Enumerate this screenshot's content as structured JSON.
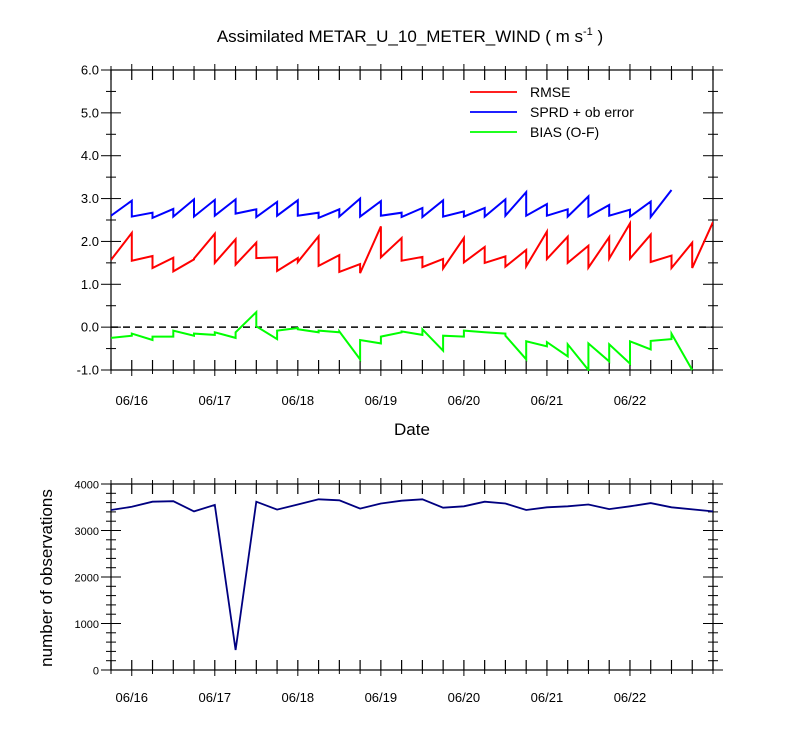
{
  "title": "Assimilated METAR_U_10_METER_WIND ( m s",
  "title_sup": "-1",
  "title_close": " )",
  "chart_data": [
    {
      "type": "line",
      "xlabel": "Date",
      "ylabel": "",
      "x_tick_labels": [
        "06/16",
        "06/17",
        "06/18",
        "06/19",
        "06/20",
        "06/21",
        "06/22"
      ],
      "x_tick_positions": [
        15.25,
        16.25,
        17.25,
        18.25,
        19.25,
        20.25,
        21.25
      ],
      "xlim": [
        15.0,
        22.25
      ],
      "ylim": [
        -1.0,
        6.0
      ],
      "y_ticks": [
        -1.0,
        0.0,
        1.0,
        2.0,
        3.0,
        4.0,
        5.0,
        6.0
      ],
      "y_tick_labels": [
        "-1.0",
        "0.0",
        "1.0",
        "2.0",
        "3.0",
        "4.0",
        "5.0",
        "6.0"
      ],
      "reference_line": {
        "y": 0.0,
        "style": "dashed"
      },
      "legend_position": "top-right",
      "series": [
        {
          "name": "RMSE",
          "color": "#ff0000",
          "points": [
            [
              15.0,
              1.57
            ],
            [
              15.25,
              2.2
            ],
            [
              15.25,
              1.55
            ],
            [
              15.5,
              1.66
            ],
            [
              15.5,
              1.38
            ],
            [
              15.75,
              1.62
            ],
            [
              15.75,
              1.3
            ],
            [
              16.0,
              1.58
            ],
            [
              16.0,
              1.6
            ],
            [
              16.25,
              2.18
            ],
            [
              16.25,
              1.5
            ],
            [
              16.5,
              2.05
            ],
            [
              16.5,
              1.46
            ],
            [
              16.75,
              1.97
            ],
            [
              16.75,
              1.61
            ],
            [
              17.0,
              1.63
            ],
            [
              17.0,
              1.31
            ],
            [
              17.25,
              1.61
            ],
            [
              17.25,
              1.52
            ],
            [
              17.5,
              2.12
            ],
            [
              17.5,
              1.43
            ],
            [
              17.75,
              1.68
            ],
            [
              17.75,
              1.29
            ],
            [
              18.0,
              1.47
            ],
            [
              18.0,
              1.26
            ],
            [
              18.25,
              2.35
            ],
            [
              18.25,
              1.63
            ],
            [
              18.5,
              2.08
            ],
            [
              18.5,
              1.55
            ],
            [
              18.75,
              1.64
            ],
            [
              18.75,
              1.4
            ],
            [
              19.0,
              1.59
            ],
            [
              19.0,
              1.37
            ],
            [
              19.25,
              2.08
            ],
            [
              19.25,
              1.51
            ],
            [
              19.5,
              1.87
            ],
            [
              19.5,
              1.5
            ],
            [
              19.75,
              1.65
            ],
            [
              19.75,
              1.41
            ],
            [
              20.0,
              1.8
            ],
            [
              20.0,
              1.42
            ],
            [
              20.25,
              2.23
            ],
            [
              20.25,
              1.59
            ],
            [
              20.5,
              2.11
            ],
            [
              20.5,
              1.5
            ],
            [
              20.75,
              1.9
            ],
            [
              20.75,
              1.39
            ],
            [
              21.0,
              2.1
            ],
            [
              21.0,
              1.6
            ],
            [
              21.25,
              2.42
            ],
            [
              21.25,
              1.6
            ],
            [
              21.5,
              2.16
            ],
            [
              21.5,
              1.52
            ],
            [
              21.75,
              1.67
            ],
            [
              21.75,
              1.38
            ],
            [
              22.0,
              1.97
            ],
            [
              22.0,
              1.38
            ],
            [
              22.25,
              2.45
            ]
          ]
        },
        {
          "name": "SPRD + ob error",
          "color": "#0000ff",
          "points": [
            [
              15.0,
              2.6
            ],
            [
              15.25,
              2.95
            ],
            [
              15.25,
              2.58
            ],
            [
              15.5,
              2.67
            ],
            [
              15.5,
              2.55
            ],
            [
              15.75,
              2.76
            ],
            [
              15.75,
              2.58
            ],
            [
              16.0,
              2.98
            ],
            [
              16.0,
              2.58
            ],
            [
              16.25,
              2.97
            ],
            [
              16.25,
              2.6
            ],
            [
              16.5,
              2.98
            ],
            [
              16.5,
              2.65
            ],
            [
              16.75,
              2.75
            ],
            [
              16.75,
              2.57
            ],
            [
              17.0,
              2.92
            ],
            [
              17.0,
              2.6
            ],
            [
              17.25,
              2.96
            ],
            [
              17.25,
              2.6
            ],
            [
              17.5,
              2.67
            ],
            [
              17.5,
              2.55
            ],
            [
              17.75,
              2.75
            ],
            [
              17.75,
              2.58
            ],
            [
              18.0,
              3.0
            ],
            [
              18.0,
              2.58
            ],
            [
              18.25,
              2.94
            ],
            [
              18.25,
              2.6
            ],
            [
              18.5,
              2.67
            ],
            [
              18.5,
              2.57
            ],
            [
              18.75,
              2.78
            ],
            [
              18.75,
              2.57
            ],
            [
              19.0,
              2.96
            ],
            [
              19.0,
              2.58
            ],
            [
              19.25,
              2.7
            ],
            [
              19.25,
              2.58
            ],
            [
              19.5,
              2.78
            ],
            [
              19.5,
              2.58
            ],
            [
              19.75,
              2.98
            ],
            [
              19.75,
              2.6
            ],
            [
              20.0,
              3.15
            ],
            [
              20.0,
              2.6
            ],
            [
              20.25,
              2.87
            ],
            [
              20.25,
              2.6
            ],
            [
              20.5,
              2.75
            ],
            [
              20.5,
              2.58
            ],
            [
              20.75,
              3.05
            ],
            [
              20.75,
              2.58
            ],
            [
              21.0,
              2.85
            ],
            [
              21.0,
              2.6
            ],
            [
              21.25,
              2.74
            ],
            [
              21.25,
              2.58
            ],
            [
              21.5,
              2.93
            ],
            [
              21.5,
              2.57
            ],
            [
              21.75,
              3.2
            ]
          ]
        },
        {
          "name": "BIAS (O-F)",
          "color": "#00ff00",
          "points": [
            [
              15.0,
              -0.25
            ],
            [
              15.25,
              -0.2
            ],
            [
              15.25,
              -0.15
            ],
            [
              15.5,
              -0.3
            ],
            [
              15.5,
              -0.22
            ],
            [
              15.75,
              -0.22
            ],
            [
              15.75,
              -0.08
            ],
            [
              16.0,
              -0.2
            ],
            [
              16.0,
              -0.15
            ],
            [
              16.25,
              -0.18
            ],
            [
              16.25,
              -0.12
            ],
            [
              16.5,
              -0.25
            ],
            [
              16.5,
              -0.12
            ],
            [
              16.75,
              0.35
            ],
            [
              16.75,
              0.02
            ],
            [
              17.0,
              -0.28
            ],
            [
              17.0,
              -0.08
            ],
            [
              17.25,
              -0.02
            ],
            [
              17.25,
              -0.05
            ],
            [
              17.5,
              -0.12
            ],
            [
              17.5,
              -0.08
            ],
            [
              17.75,
              -0.12
            ],
            [
              17.75,
              -0.1
            ],
            [
              18.0,
              -0.75
            ],
            [
              18.0,
              -0.3
            ],
            [
              18.25,
              -0.38
            ],
            [
              18.25,
              -0.22
            ],
            [
              18.5,
              -0.12
            ],
            [
              18.5,
              -0.1
            ],
            [
              18.75,
              -0.18
            ],
            [
              18.75,
              -0.05
            ],
            [
              19.0,
              -0.55
            ],
            [
              19.0,
              -0.2
            ],
            [
              19.25,
              -0.22
            ],
            [
              19.25,
              -0.08
            ],
            [
              19.5,
              -0.12
            ],
            [
              19.5,
              -0.12
            ],
            [
              19.75,
              -0.15
            ],
            [
              19.75,
              -0.2
            ],
            [
              20.0,
              -0.75
            ],
            [
              20.0,
              -0.33
            ],
            [
              20.25,
              -0.45
            ],
            [
              20.25,
              -0.35
            ],
            [
              20.5,
              -0.68
            ],
            [
              20.5,
              -0.4
            ],
            [
              20.75,
              -1.0
            ],
            [
              20.75,
              -0.38
            ],
            [
              21.0,
              -0.8
            ],
            [
              21.0,
              -0.4
            ],
            [
              21.25,
              -0.85
            ],
            [
              21.25,
              -0.33
            ],
            [
              21.5,
              -0.52
            ],
            [
              21.5,
              -0.32
            ],
            [
              21.75,
              -0.28
            ],
            [
              21.75,
              -0.15
            ],
            [
              22.0,
              -1.0
            ]
          ]
        }
      ]
    },
    {
      "type": "line",
      "xlabel": "",
      "ylabel": "number of observations",
      "x_tick_labels": [
        "06/16",
        "06/17",
        "06/18",
        "06/19",
        "06/20",
        "06/21",
        "06/22"
      ],
      "x_tick_positions": [
        15.25,
        16.25,
        17.25,
        18.25,
        19.25,
        20.25,
        21.25
      ],
      "xlim": [
        15.0,
        22.25
      ],
      "ylim": [
        0,
        4000
      ],
      "y_ticks": [
        0,
        1000,
        2000,
        3000,
        4000
      ],
      "y_tick_labels": [
        "0",
        "1000",
        "2000",
        "3000",
        "4000"
      ],
      "series": [
        {
          "name": "",
          "color": "#000080",
          "points": [
            [
              15.0,
              3440
            ],
            [
              15.25,
              3510
            ],
            [
              15.5,
              3620
            ],
            [
              15.75,
              3630
            ],
            [
              16.0,
              3410
            ],
            [
              16.25,
              3550
            ],
            [
              16.5,
              430
            ],
            [
              16.75,
              3620
            ],
            [
              17.0,
              3450
            ],
            [
              17.25,
              3560
            ],
            [
              17.5,
              3670
            ],
            [
              17.75,
              3650
            ],
            [
              18.0,
              3470
            ],
            [
              18.25,
              3580
            ],
            [
              18.5,
              3640
            ],
            [
              18.75,
              3670
            ],
            [
              19.0,
              3490
            ],
            [
              19.25,
              3520
            ],
            [
              19.5,
              3620
            ],
            [
              19.75,
              3580
            ],
            [
              20.0,
              3440
            ],
            [
              20.25,
              3500
            ],
            [
              20.5,
              3520
            ],
            [
              20.75,
              3560
            ],
            [
              21.0,
              3460
            ],
            [
              21.25,
              3520
            ],
            [
              21.5,
              3590
            ],
            [
              21.75,
              3500
            ],
            [
              22.25,
              3410
            ]
          ]
        }
      ]
    }
  ]
}
